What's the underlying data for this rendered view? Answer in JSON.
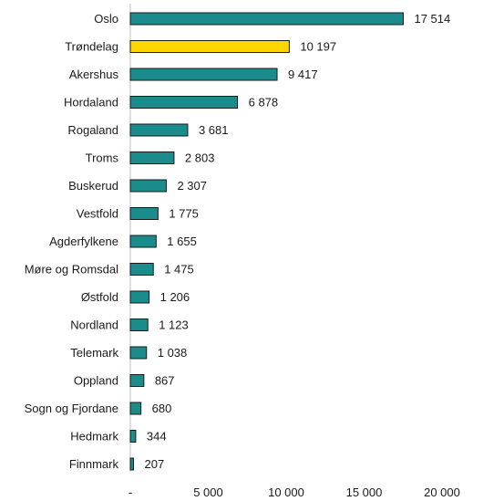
{
  "chart_data": {
    "type": "bar",
    "orientation": "horizontal",
    "categories": [
      "Oslo",
      "Trøndelag",
      "Akershus",
      "Hordaland",
      "Rogaland",
      "Troms",
      "Buskerud",
      "Vestfold",
      "Agderfylkene",
      "Møre og Romsdal",
      "Østfold",
      "Nordland",
      "Telemark",
      "Oppland",
      "Sogn og Fjordane",
      "Hedmark",
      "Finnmark"
    ],
    "values": [
      17514,
      10197,
      9417,
      6878,
      3681,
      2803,
      2307,
      1775,
      1655,
      1475,
      1206,
      1123,
      1038,
      867,
      680,
      344,
      207
    ],
    "value_labels": [
      "17 514",
      "10 197",
      "9 417",
      "6 878",
      "3 681",
      "2 803",
      "2 307",
      "1 775",
      "1 655",
      "1 475",
      "1 206",
      "1 123",
      "1 038",
      "867",
      "680",
      "344",
      "207"
    ],
    "bar_colors": [
      "#1a8c8c",
      "#ffd700",
      "#1a8c8c",
      "#1a8c8c",
      "#1a8c8c",
      "#1a8c8c",
      "#1a8c8c",
      "#1a8c8c",
      "#1a8c8c",
      "#1a8c8c",
      "#1a8c8c",
      "#1a8c8c",
      "#1a8c8c",
      "#1a8c8c",
      "#1a8c8c",
      "#1a8c8c",
      "#1a8c8c"
    ],
    "bar_outline_color": "#1a1a1a",
    "x_ticks": [
      0,
      5000,
      10000,
      15000,
      20000
    ],
    "x_tick_labels": [
      "-",
      "5 000",
      "10 000",
      "15 000",
      "20 000"
    ],
    "xlim": [
      0,
      20000
    ],
    "title": "",
    "xlabel": "",
    "ylabel": "",
    "grid": false,
    "legend": "none"
  }
}
